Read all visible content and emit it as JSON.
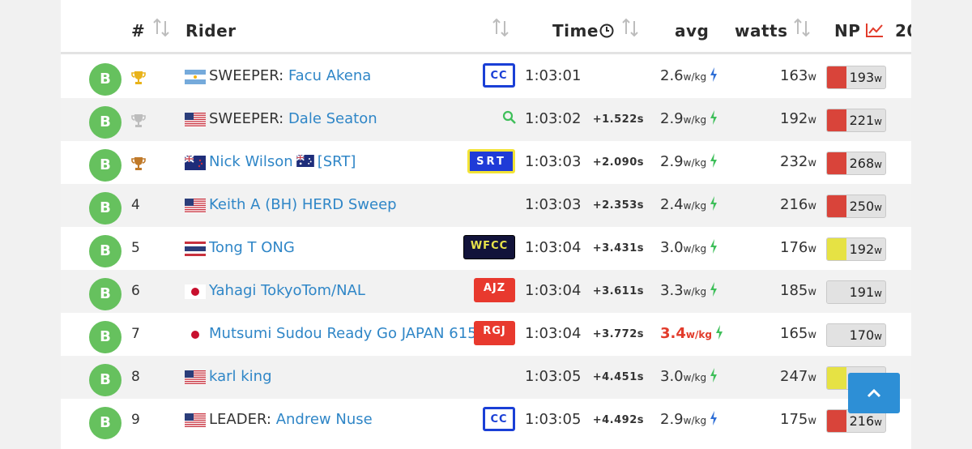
{
  "header": {
    "rank_label": "#",
    "rider_label": "Rider",
    "time_label": "Time",
    "avg_label": "avg",
    "watts_label": "watts",
    "np_label": "NP",
    "next_col_label": "20"
  },
  "colors": {
    "badge": "#66c15e",
    "link": "#2f86c7",
    "np_red": "#d9443a",
    "np_yellow": "#e6e244",
    "np_grey": "#e2e2e2",
    "scroll_button": "#2d8fd6"
  },
  "rows": [
    {
      "category": "B",
      "position": "",
      "trophy": "gold",
      "flag": "AR",
      "prefix": "SWEEPER: ",
      "name": "Facu Akena",
      "team": "CC",
      "time": "1:03:01",
      "gap": "",
      "avg": "2.6",
      "avg_unit": "w/kg",
      "avg_hot": false,
      "bolt": "blue",
      "watts": "163",
      "watts_unit": "w",
      "np": "193",
      "np_unit": "w",
      "np_color": "red"
    },
    {
      "category": "B",
      "position": "",
      "trophy": "silver",
      "flag": "US",
      "prefix": "SWEEPER: ",
      "name": "Dale Seaton",
      "team": "",
      "zoom": true,
      "time": "1:03:02",
      "gap": "+1.522s",
      "avg": "2.9",
      "avg_unit": "w/kg",
      "avg_hot": false,
      "bolt": "green",
      "watts": "192",
      "watts_unit": "w",
      "np": "221",
      "np_unit": "w",
      "np_color": "red"
    },
    {
      "category": "B",
      "position": "",
      "trophy": "bronze",
      "flag": "NZ",
      "prefix": "",
      "name": "Nick Wilson",
      "suffix_flag": "AU",
      "suffix": "[SRT]",
      "team": "SRT",
      "time": "1:03:03",
      "gap": "+2.090s",
      "avg": "2.9",
      "avg_unit": "w/kg",
      "avg_hot": false,
      "bolt": "green",
      "watts": "232",
      "watts_unit": "w",
      "np": "268",
      "np_unit": "w",
      "np_color": "red"
    },
    {
      "category": "B",
      "position": "4",
      "flag": "US",
      "prefix": "",
      "name": "Keith A (BH) HERD Sweep",
      "team": "",
      "time": "1:03:03",
      "gap": "+2.353s",
      "avg": "2.4",
      "avg_unit": "w/kg",
      "avg_hot": false,
      "bolt": "green",
      "watts": "216",
      "watts_unit": "w",
      "np": "250",
      "np_unit": "w",
      "np_color": "red"
    },
    {
      "category": "B",
      "position": "5",
      "flag": "TH",
      "prefix": "",
      "name": "Tong T ONG",
      "team": "WFCC",
      "time": "1:03:04",
      "gap": "+3.431s",
      "avg": "3.0",
      "avg_unit": "w/kg",
      "avg_hot": false,
      "bolt": "green",
      "watts": "176",
      "watts_unit": "w",
      "np": "192",
      "np_unit": "w",
      "np_color": "yellow"
    },
    {
      "category": "B",
      "position": "6",
      "flag": "JP",
      "prefix": "",
      "name": "Yahagi TokyoTom/NAL",
      "team": "AJZ",
      "time": "1:03:04",
      "gap": "+3.611s",
      "avg": "3.3",
      "avg_unit": "w/kg",
      "avg_hot": false,
      "bolt": "green",
      "watts": "185",
      "watts_unit": "w",
      "np": "191",
      "np_unit": "w",
      "np_color": "grey"
    },
    {
      "category": "B",
      "position": "7",
      "flag": "JP",
      "prefix": "",
      "name": "Mutsumi Sudou Ready Go JAPAN 615",
      "team": "RGJ",
      "time": "1:03:04",
      "gap": "+3.772s",
      "avg": "3.4",
      "avg_unit": "w/kg",
      "avg_hot": true,
      "bolt": "green",
      "watts": "165",
      "watts_unit": "w",
      "np": "170",
      "np_unit": "w",
      "np_color": "grey"
    },
    {
      "category": "B",
      "position": "8",
      "flag": "US",
      "prefix": "",
      "name": "karl king",
      "team": "",
      "time": "1:03:05",
      "gap": "+4.451s",
      "avg": "3.0",
      "avg_unit": "w/kg",
      "avg_hot": false,
      "bolt": "green",
      "watts": "247",
      "watts_unit": "w",
      "np": "",
      "np_unit": "",
      "np_color": "yellow"
    },
    {
      "category": "B",
      "position": "9",
      "flag": "US",
      "prefix": "LEADER: ",
      "name": "Andrew Nuse",
      "team": "CC",
      "time": "1:03:05",
      "gap": "+4.492s",
      "avg": "2.9",
      "avg_unit": "w/kg",
      "avg_hot": false,
      "bolt": "blue",
      "watts": "175",
      "watts_unit": "w",
      "np": "216",
      "np_unit": "w",
      "np_color": "red"
    }
  ]
}
